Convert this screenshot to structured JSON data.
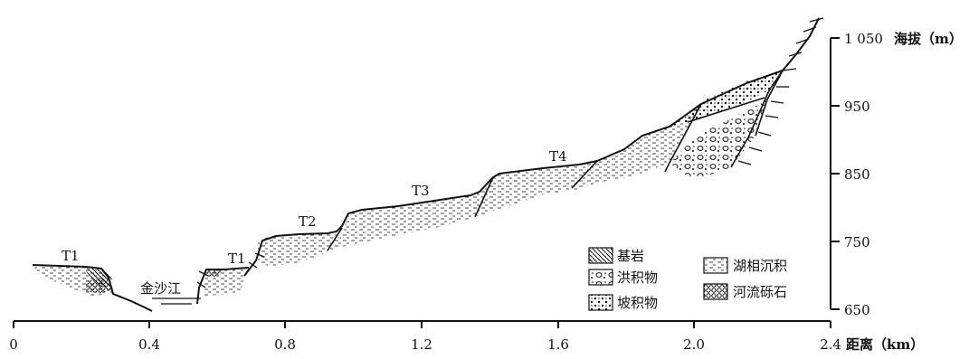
{
  "axes": {
    "x_ticks": [
      "0",
      "0.4",
      "0.8",
      "1.2",
      "1.6",
      "2.0",
      "2.4"
    ],
    "x_title": "距离（km）",
    "y_ticks": [
      "650",
      "750",
      "850",
      "950",
      "1 050"
    ],
    "y_title": "海拔（m）"
  },
  "terraces": [
    "T1",
    "T1",
    "T2",
    "T3",
    "T4"
  ],
  "river": "金沙江",
  "legend": {
    "bedrock": "基岩",
    "flood": "洪积物",
    "slope": "坡积物",
    "lake": "湖相沉积",
    "gravel": "河流砾石"
  }
}
